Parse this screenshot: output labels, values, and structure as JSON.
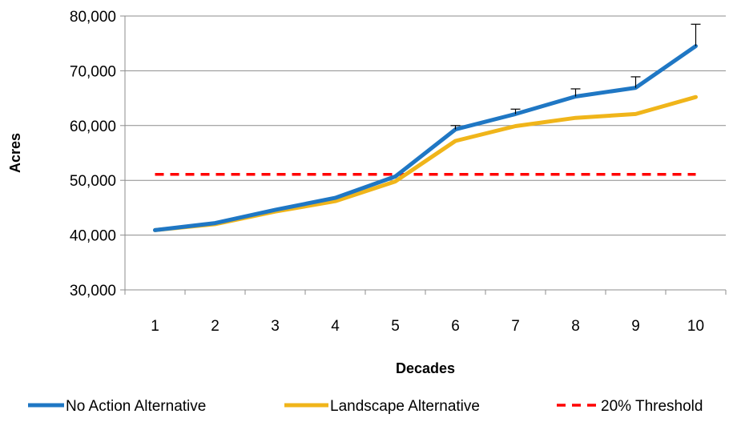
{
  "chart_data": {
    "type": "line",
    "title": "",
    "xlabel": "Decades",
    "ylabel": "Acres",
    "categories": [
      "1",
      "2",
      "3",
      "4",
      "5",
      "6",
      "7",
      "8",
      "9",
      "10"
    ],
    "ylim": [
      30000,
      80000
    ],
    "y_ticks": [
      "30,000",
      "40,000",
      "50,000",
      "60,000",
      "70,000",
      "80,000"
    ],
    "y_tick_values": [
      30000,
      40000,
      50000,
      60000,
      70000,
      80000
    ],
    "grid": "horizontal",
    "legend_position": "bottom",
    "series": [
      {
        "name": "No Action Alternative",
        "color": "#1f77c4",
        "style": "solid",
        "values": [
          40900,
          42200,
          44600,
          46800,
          50700,
          59300,
          62100,
          65300,
          66900,
          74500
        ],
        "error_upper": [
          null,
          null,
          null,
          null,
          null,
          60000,
          63000,
          66700,
          68900,
          78500
        ]
      },
      {
        "name": "Landscape Alternative",
        "color": "#f0b51a",
        "style": "solid",
        "values": [
          40900,
          42000,
          44300,
          46200,
          49800,
          57200,
          59900,
          61400,
          62100,
          65200
        ]
      },
      {
        "name": "20% Threshold",
        "color": "#ff0000",
        "style": "dashed",
        "values": [
          51100,
          51100,
          51100,
          51100,
          51100,
          51100,
          51100,
          51100,
          51100,
          51100
        ]
      }
    ]
  }
}
